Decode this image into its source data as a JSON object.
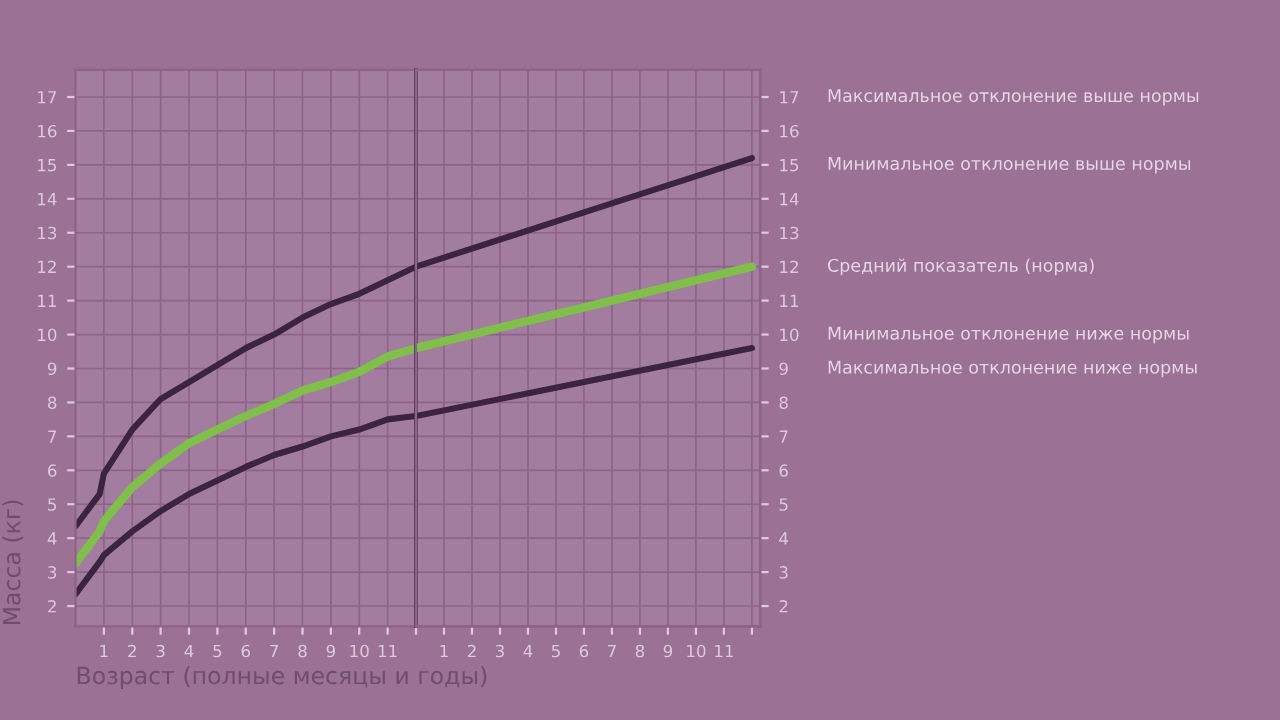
{
  "chart_data": [
    {
      "type": "line",
      "xlabel": "Возраст (полные месяцы и годы)",
      "ylabel": "Масса (кг)",
      "xlim": [
        0,
        12
      ],
      "ylim": [
        1.4,
        17.8
      ],
      "xticks": [
        1,
        2,
        3,
        4,
        5,
        6,
        7,
        8,
        9,
        10,
        11,
        {
          "value": 12,
          "label": null
        }
      ],
      "yticks": [
        2,
        3,
        4,
        5,
        6,
        7,
        8,
        9,
        10,
        11,
        12,
        13,
        14,
        15,
        16,
        17
      ],
      "x": [
        0,
        0.85,
        1,
        2,
        3,
        4,
        5,
        6,
        7,
        8,
        9,
        10,
        11,
        12
      ],
      "series": [
        {
          "color": "#3b2440",
          "values": [
            4.35,
            5.3,
            5.9,
            7.2,
            8.1,
            8.6,
            9.1,
            9.6,
            10.0,
            10.5,
            10.9,
            11.2,
            11.6,
            12.0
          ]
        },
        {
          "color": "#7fbf4a",
          "values": [
            3.25,
            4.2,
            4.5,
            5.5,
            6.2,
            6.8,
            7.2,
            7.6,
            7.95,
            8.35,
            8.6,
            8.9,
            9.35,
            9.6
          ]
        },
        {
          "color": "#3b2440",
          "values": [
            2.35,
            3.3,
            3.5,
            4.2,
            4.8,
            5.3,
            5.7,
            6.1,
            6.45,
            6.7,
            7.0,
            7.2,
            7.5,
            7.6
          ]
        }
      ],
      "grid": true,
      "legend": false,
      "marker": "none",
      "line_style": "solid"
    },
    {
      "type": "line",
      "xlim": [
        0,
        12.3
      ],
      "y2lim": [
        1.4,
        17.8
      ],
      "xticks": [
        1,
        2,
        3,
        4,
        5,
        6,
        7,
        8,
        9,
        10,
        11,
        {
          "value": 12,
          "label": null
        }
      ],
      "y2ticks": [
        2,
        3,
        4,
        5,
        6,
        7,
        8,
        9,
        10,
        11,
        12,
        13,
        14,
        15,
        16,
        17
      ],
      "x": [
        0,
        6,
        12
      ],
      "series": [
        {
          "color": "#3b2440",
          "axis": "y2",
          "values": [
            12.0,
            13.6,
            15.2
          ]
        },
        {
          "color": "#7fbf4a",
          "axis": "y2",
          "values": [
            9.6,
            10.8,
            12.0
          ]
        },
        {
          "color": "#3b2440",
          "axis": "y2",
          "values": [
            7.6,
            8.6,
            9.6
          ]
        }
      ],
      "annotations": [
        "Максимальное отклонение выше нормы",
        "Минимальное отклонение выше нормы",
        "Средний показатель (норма)",
        "Минимальное отклонение ниже нормы",
        "Максимальное отклонение ниже нормы"
      ],
      "grid": true,
      "legend": false,
      "marker": "none",
      "line_style": "solid"
    }
  ]
}
